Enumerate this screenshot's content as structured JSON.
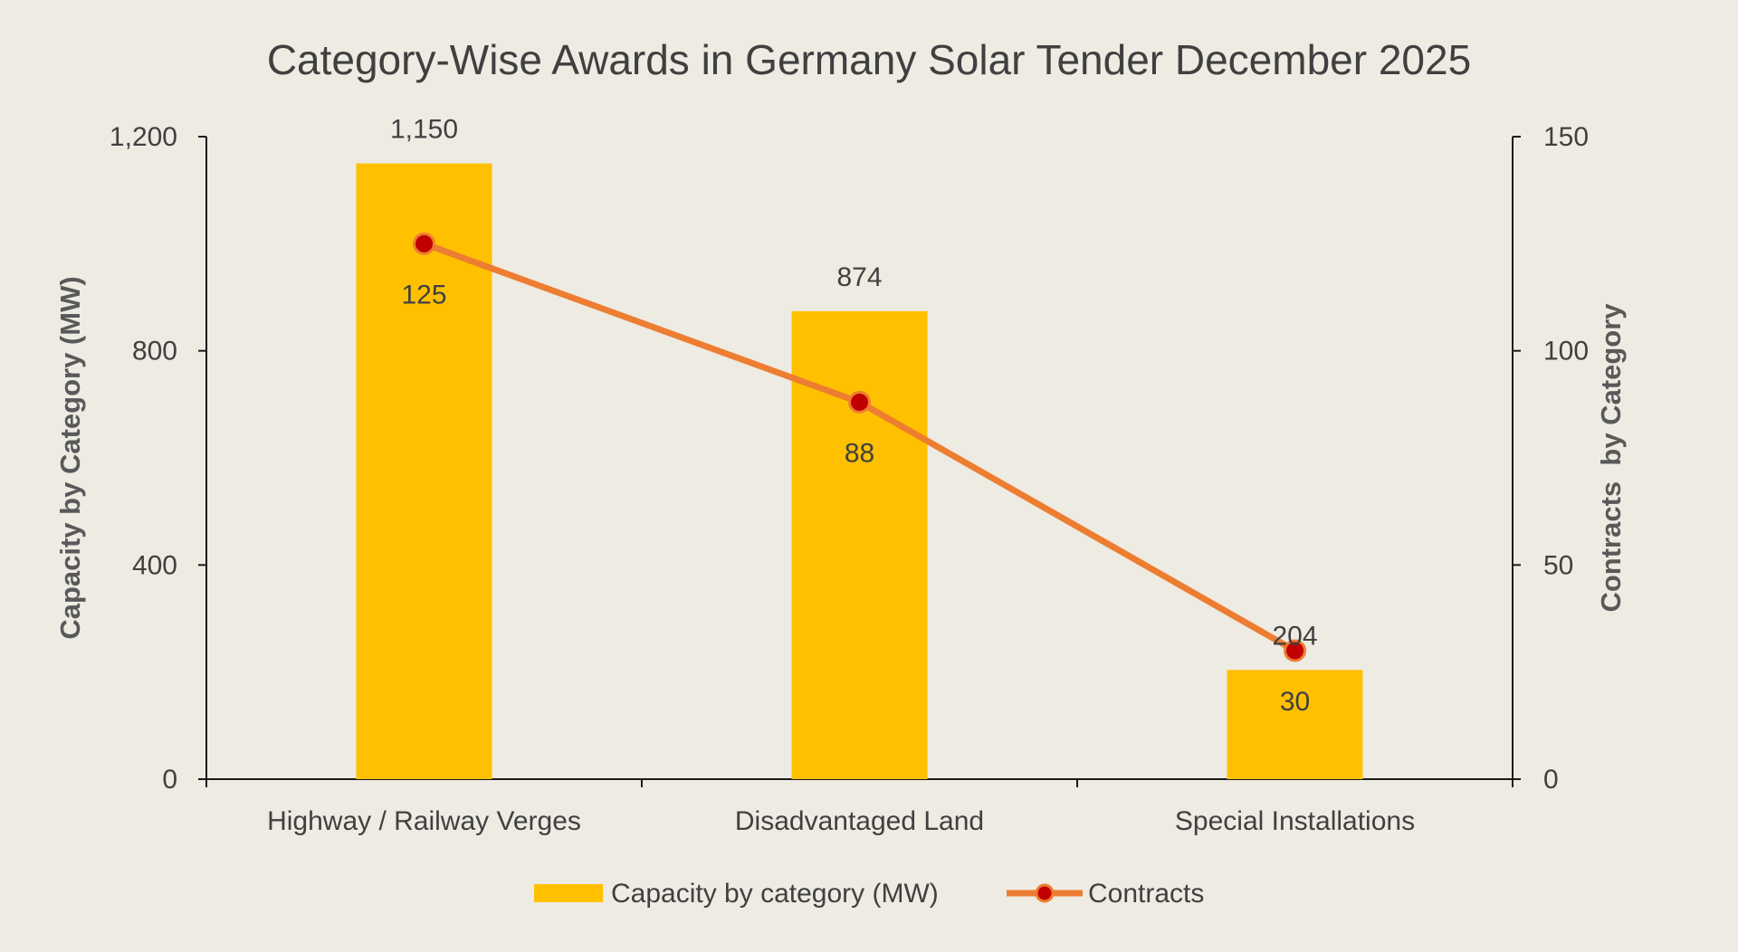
{
  "chart_data": {
    "type": "bar+line",
    "title": "Category-Wise Awards in Germany Solar Tender December 2025",
    "categories": [
      "Highway / Railway Verges",
      "Disadvantaged Land",
      "Special Installations"
    ],
    "series": [
      {
        "name": "Capacity by category (MW)",
        "type": "bar",
        "axis": "left",
        "values": [
          1150,
          874,
          204
        ],
        "labels": [
          "1,150",
          "874",
          "204"
        ],
        "color": "#ffc000"
      },
      {
        "name": "Contracts",
        "type": "line",
        "axis": "right",
        "values": [
          125,
          88,
          30
        ],
        "labels": [
          "125",
          "88",
          "30"
        ],
        "color": "#ed7d31",
        "marker_color": "#c00000"
      }
    ],
    "ylabel": "Capacity by Category (MW)",
    "y2label": "Contracts  by Category",
    "ylim": [
      0,
      1200
    ],
    "y2lim": [
      0,
      150
    ],
    "yticks": [
      "0",
      "400",
      "800",
      "1,200"
    ],
    "y2ticks": [
      "0",
      "50",
      "100",
      "150"
    ],
    "grid": false,
    "legend": "bottom"
  }
}
